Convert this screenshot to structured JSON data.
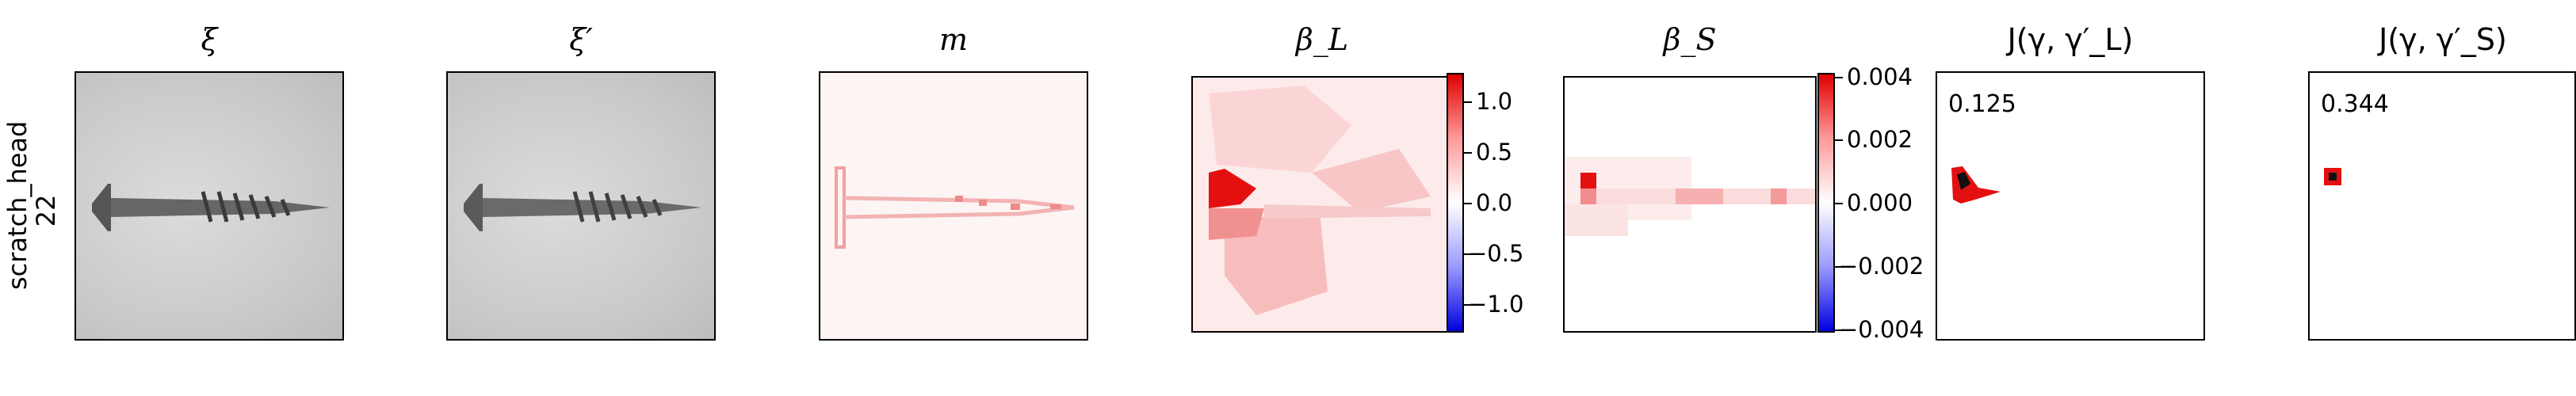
{
  "row_label": {
    "line1": "scratch_head",
    "line2": "22"
  },
  "panels": [
    {
      "title": "ξ"
    },
    {
      "title": "ξ′"
    },
    {
      "title": "m"
    },
    {
      "title": "β_L"
    },
    {
      "title": "β_S"
    },
    {
      "title": "J(γ, γ′_L)"
    },
    {
      "title": "J(γ, γ′_S)"
    }
  ],
  "scores": {
    "jl": "0.125",
    "js": "0.344"
  },
  "colorbars": {
    "beta_l": {
      "ticks": [
        "1.0",
        "0.5",
        "0.0",
        "−0.5",
        "−1.0"
      ]
    },
    "beta_s": {
      "ticks": [
        "0.004",
        "0.002",
        "0.000",
        "−0.002",
        "−0.004"
      ]
    }
  },
  "colors": {
    "positive": "#e00000",
    "negative": "#0000e0",
    "screw": "#555555",
    "background_gray": "#d0d0d0"
  }
}
